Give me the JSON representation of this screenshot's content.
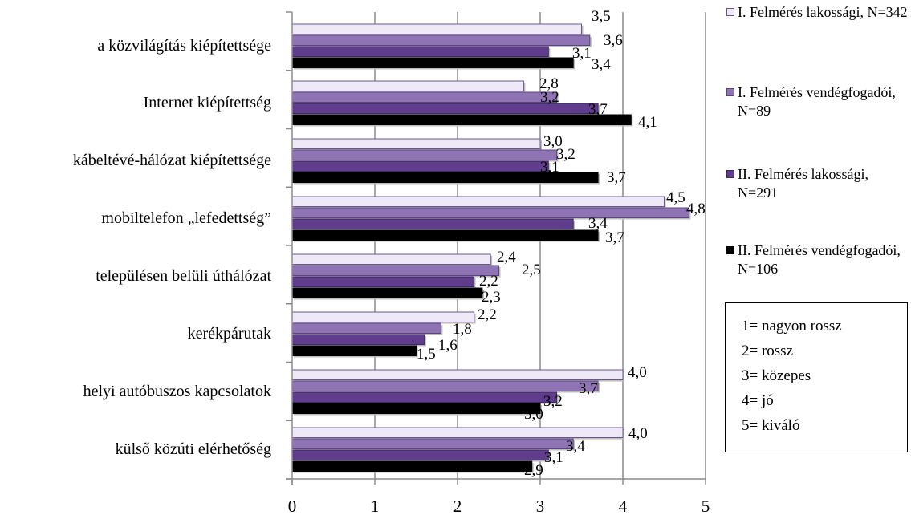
{
  "chart_data": {
    "type": "bar",
    "orientation": "horizontal",
    "categories": [
      "a közvilágítás kiépítettsége",
      "Internet kiépítettség",
      "kábeltévé-hálózat kiépítettsége",
      "mobiltelefon „lefedettség”",
      "településen belüli úthálózat",
      "kerékpárutak",
      "helyi autóbuszos kapcsolatok",
      "külső közúti elérhetőség"
    ],
    "series": [
      {
        "name": "I. Felmérés lakossági, N=342",
        "values": [
          3.5,
          2.8,
          3.0,
          4.5,
          2.4,
          2.2,
          4.0,
          4.0
        ],
        "labels": [
          "3,5",
          "2,8",
          "3,0",
          "4,5",
          "2,4",
          "2,2",
          "4,0",
          "4,0"
        ],
        "color": "#efe9f7"
      },
      {
        "name": "I. Felmérés vendégfogadói, N=89",
        "values": [
          3.6,
          3.2,
          3.2,
          4.8,
          2.5,
          1.8,
          3.7,
          3.4
        ],
        "labels": [
          "3,6",
          "3,2",
          "3,2",
          "4,8",
          "2,5",
          "1,8",
          "3,7",
          "3,4"
        ],
        "color": "#8e74b2"
      },
      {
        "name": "II. Felmérés lakossági, N=291",
        "values": [
          3.1,
          3.7,
          3.1,
          3.4,
          2.2,
          1.6,
          3.2,
          3.1
        ],
        "labels": [
          "3,1",
          "3,7",
          "3,1",
          "3,4",
          "2,2",
          "1,6",
          "3,2",
          "3,1"
        ],
        "color": "#5f3d8c"
      },
      {
        "name": "II. Felmérés vendégfogadói, N=106",
        "values": [
          3.4,
          4.1,
          3.7,
          3.7,
          2.3,
          1.5,
          3.0,
          2.9
        ],
        "labels": [
          "3,4",
          "4,1",
          "3,7",
          "3,7",
          "2,3",
          "1,5",
          "3,0",
          "2,9"
        ],
        "color": "#000000"
      }
    ],
    "x_ticks": [
      "0",
      "1",
      "2",
      "3",
      "4",
      "5"
    ],
    "xlim": [
      0,
      5
    ],
    "grid": true,
    "legend_position": "right",
    "scale_note": [
      "1= nagyon rossz",
      "2= rossz",
      "3= közepes",
      "4= jó",
      "5= kiváló"
    ],
    "title": "",
    "xlabel": "",
    "ylabel": ""
  }
}
